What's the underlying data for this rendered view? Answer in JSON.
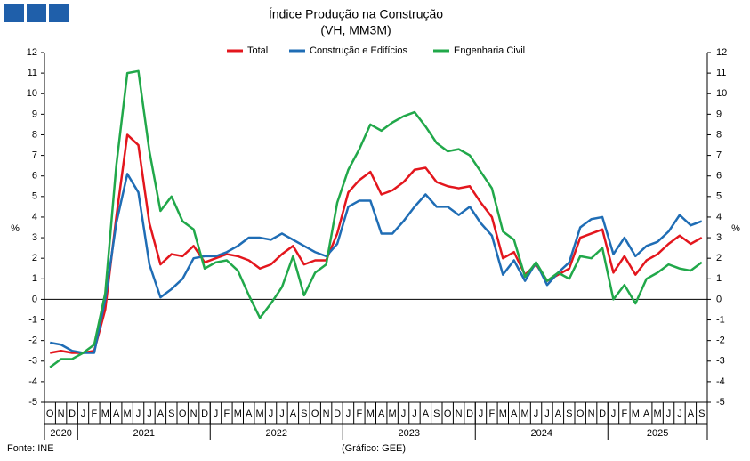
{
  "chart_data": {
    "type": "line",
    "title": "Índice Produção na Construção",
    "subtitle": "(VH, MM3M)",
    "ylabel": "%",
    "y2label": "%",
    "source": "Fonte: INE",
    "credit": "(Gráfico: GEE)",
    "categories": [
      "O",
      "N",
      "D",
      "J",
      "F",
      "M",
      "A",
      "M",
      "J",
      "J",
      "A",
      "S",
      "O",
      "N",
      "D",
      "J",
      "F",
      "M",
      "A",
      "M",
      "J",
      "J",
      "A",
      "S",
      "O",
      "N",
      "D",
      "J",
      "F",
      "M",
      "A",
      "M",
      "J",
      "J",
      "A",
      "S",
      "O",
      "N",
      "D",
      "J",
      "F",
      "M",
      "A",
      "M",
      "J",
      "J",
      "A",
      "S",
      "O",
      "N",
      "D",
      "J",
      "F",
      "M",
      "A",
      "M",
      "J",
      "J",
      "A",
      "S"
    ],
    "year_groups": [
      "2020",
      "2021",
      "2022",
      "2023",
      "2024",
      "2025"
    ],
    "series": [
      {
        "name": "Total",
        "color": "#e3161d",
        "values": [
          -2.6,
          -2.5,
          -2.6,
          -2.6,
          -2.5,
          -0.5,
          4.0,
          8.0,
          7.5,
          3.7,
          1.7,
          2.2,
          2.1,
          2.6,
          1.8,
          2.0,
          2.2,
          2.1,
          1.9,
          1.5,
          1.7,
          2.2,
          2.6,
          1.7,
          1.9,
          1.9,
          3.2,
          5.2,
          5.8,
          6.2,
          5.1,
          5.3,
          5.7,
          6.3,
          6.4,
          5.7,
          5.5,
          5.4,
          5.5,
          4.7,
          4.0,
          2.0,
          2.3,
          1.2,
          1.7,
          0.9,
          1.2,
          1.5,
          3.0,
          3.2,
          3.4,
          1.3,
          2.1,
          1.2,
          1.9,
          2.2,
          2.7,
          3.1,
          2.7,
          3.0
        ]
      },
      {
        "name": "Construção e Edifícios",
        "color": "#1f6db5",
        "values": [
          -2.1,
          -2.2,
          -2.5,
          -2.6,
          -2.6,
          0.0,
          3.7,
          6.1,
          5.2,
          1.7,
          0.1,
          0.5,
          1.0,
          2.0,
          2.1,
          2.1,
          2.3,
          2.6,
          3.0,
          3.0,
          2.9,
          3.2,
          2.9,
          2.6,
          2.3,
          2.1,
          2.7,
          4.5,
          4.8,
          4.8,
          3.2,
          3.2,
          3.8,
          4.5,
          5.1,
          4.5,
          4.5,
          4.1,
          4.5,
          3.7,
          3.1,
          1.2,
          1.9,
          0.9,
          1.8,
          0.7,
          1.3,
          1.8,
          3.5,
          3.9,
          4.0,
          2.2,
          3.0,
          2.1,
          2.6,
          2.8,
          3.3,
          4.1,
          3.6,
          3.8
        ]
      },
      {
        "name": "Engenharia Civil",
        "color": "#21a84a",
        "values": [
          -3.3,
          -2.9,
          -2.9,
          -2.6,
          -2.2,
          0.3,
          6.5,
          11.0,
          11.1,
          7.2,
          4.3,
          5.0,
          3.8,
          3.4,
          1.5,
          1.8,
          1.9,
          1.4,
          0.2,
          -0.9,
          -0.2,
          0.6,
          2.1,
          0.2,
          1.3,
          1.7,
          4.7,
          6.3,
          7.3,
          8.5,
          8.2,
          8.6,
          8.9,
          9.1,
          8.4,
          7.6,
          7.2,
          7.3,
          7.0,
          6.2,
          5.4,
          3.3,
          2.9,
          1.1,
          1.8,
          0.9,
          1.3,
          1.0,
          2.1,
          2.0,
          2.5,
          0.0,
          0.7,
          -0.2,
          1.0,
          1.3,
          1.7,
          1.5,
          1.4,
          1.8
        ]
      }
    ],
    "ylim": [
      -5,
      12
    ],
    "yticks": [
      -5,
      -4,
      -3,
      -2,
      -1,
      0,
      1,
      2,
      3,
      4,
      5,
      6,
      7,
      8,
      9,
      10,
      11,
      12
    ],
    "y2lim": [
      -5,
      12
    ],
    "y2ticks": [
      -5,
      -4,
      -3,
      -2,
      -1,
      0,
      1,
      2,
      3,
      4,
      5,
      6,
      7,
      8,
      9,
      10,
      11,
      12
    ],
    "legend": "top"
  }
}
